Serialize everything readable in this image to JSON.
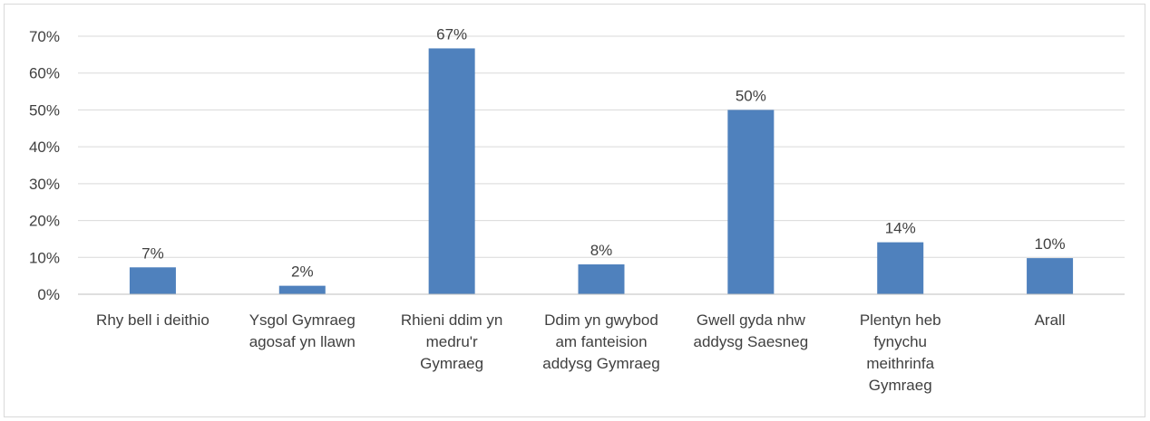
{
  "chart_data": {
    "type": "bar",
    "categories": [
      [
        "Rhy bell i deithio"
      ],
      [
        "Ysgol Gymraeg",
        "agosaf yn llawn"
      ],
      [
        "Rhieni ddim yn",
        "medru'r",
        "Gymraeg"
      ],
      [
        "Ddim yn gwybod",
        "am fanteision",
        "addysg Gymraeg"
      ],
      [
        "Gwell gyda nhw",
        "addysg Saesneg"
      ],
      [
        "Plentyn heb",
        "fynychu",
        "meithrinfa",
        "Gymraeg"
      ],
      [
        "Arall"
      ]
    ],
    "values": [
      7.3,
      2.3,
      66.7,
      8.1,
      50.0,
      14.1,
      9.8
    ],
    "data_labels": [
      "7%",
      "2%",
      "67%",
      "8%",
      "50%",
      "14%",
      "10%"
    ],
    "y_ticks": [
      0,
      10,
      20,
      30,
      40,
      50,
      60,
      70
    ],
    "y_tick_labels": [
      "0%",
      "10%",
      "20%",
      "30%",
      "40%",
      "50%",
      "60%",
      "70%"
    ],
    "ylim": [
      0,
      70
    ],
    "grid": true,
    "bar_color": "#4f81bd",
    "grid_color": "#d9d9d9",
    "title": "",
    "xlabel": "",
    "ylabel": ""
  }
}
